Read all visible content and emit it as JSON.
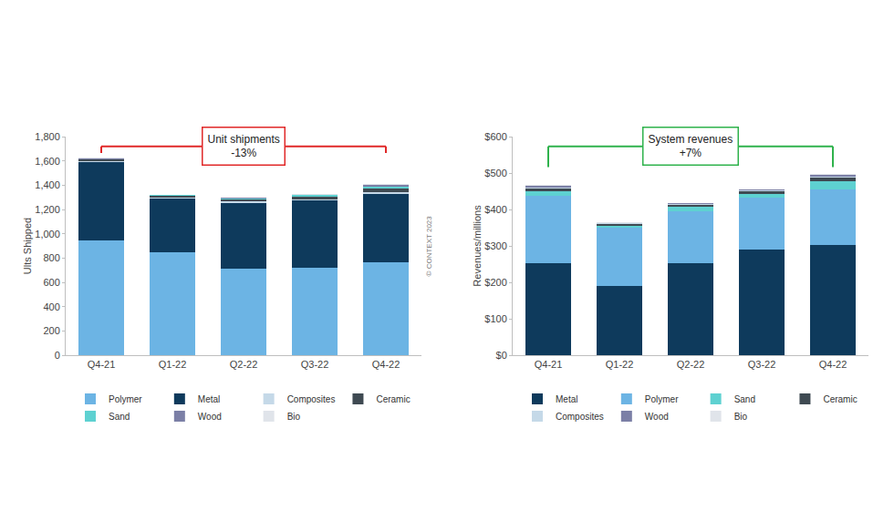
{
  "chart_data": [
    {
      "type": "bar",
      "stacked": true,
      "grid": false,
      "legend": "bottom",
      "callout": [
        "Unit shipments",
        "-13%"
      ],
      "annotations": [
        "© CONTEXT 2023"
      ],
      "y_label": "Ults Shipped",
      "categories": [
        "Q4-21",
        "Q1-22",
        "Q2-22",
        "Q3-22",
        "Q4-22"
      ],
      "series": [
        {
          "name": "Polymer",
          "color": "#6cb4e4",
          "values": [
            945,
            850,
            710,
            720,
            765
          ]
        },
        {
          "name": "Metal",
          "color": "#0e3a5c",
          "values": [
            645,
            440,
            545,
            555,
            565
          ]
        },
        {
          "name": "Composites",
          "color": "#c5d9e8",
          "values": [
            10,
            10,
            10,
            10,
            15
          ]
        },
        {
          "name": "Ceramic",
          "color": "#3f4a52",
          "values": [
            10,
            10,
            15,
            20,
            25
          ]
        },
        {
          "name": "Sand",
          "color": "#5ed1d1",
          "values": [
            5,
            8,
            12,
            15,
            20
          ]
        },
        {
          "name": "Wood",
          "color": "#7b7fa6",
          "values": [
            5,
            2,
            3,
            3,
            12
          ]
        },
        {
          "name": "Bio",
          "color": "#e0e4ea",
          "values": [
            5,
            2,
            3,
            2,
            5
          ]
        }
      ],
      "ylim": [
        0,
        1800
      ],
      "yticks": [
        0,
        200,
        400,
        600,
        800,
        {
          "value": 1000,
          "label": "1,000"
        },
        {
          "value": 1200,
          "label": "1,200"
        },
        {
          "value": 1400,
          "label": "1,400"
        },
        {
          "value": 1600,
          "label": "1,600"
        },
        {
          "value": 1800,
          "label": "1,800"
        }
      ]
    },
    {
      "type": "bar",
      "stacked": true,
      "grid": false,
      "legend": "bottom",
      "callout": [
        "System revenues",
        "+7%"
      ],
      "y_label": "Revenues/millions",
      "categories": [
        "Q4-21",
        "Q1-22",
        "Q2-22",
        "Q3-22",
        "Q4-22"
      ],
      "series": [
        {
          "name": "Metal",
          "color": "#0e3a5c",
          "values": [
            253,
            190,
            253,
            290,
            302
          ]
        },
        {
          "name": "Polymer",
          "color": "#6cb4e4",
          "values": [
            185,
            160,
            142,
            143,
            153
          ]
        },
        {
          "name": "Sand",
          "color": "#5ed1d1",
          "values": [
            12,
            5,
            12,
            10,
            22
          ]
        },
        {
          "name": "Ceramic",
          "color": "#3f4a52",
          "values": [
            8,
            5,
            6,
            6,
            10
          ]
        },
        {
          "name": "Composites",
          "color": "#c5d9e8",
          "values": [
            3,
            2,
            3,
            3,
            3
          ]
        },
        {
          "name": "Wood",
          "color": "#7b7fa6",
          "values": [
            3,
            1,
            1,
            2,
            4
          ]
        },
        {
          "name": "Bio",
          "color": "#e0e4ea",
          "values": [
            3,
            1,
            1,
            2,
            4
          ]
        }
      ],
      "ylim": [
        0,
        600
      ],
      "yticks": [
        {
          "value": 0,
          "label": "$0"
        },
        {
          "value": 100,
          "label": "$100"
        },
        {
          "value": 200,
          "label": "$200"
        },
        {
          "value": 300,
          "label": "$300"
        },
        {
          "value": 400,
          "label": "$400"
        },
        {
          "value": 500,
          "label": "$500"
        },
        {
          "value": 600,
          "label": "$600"
        }
      ]
    }
  ]
}
